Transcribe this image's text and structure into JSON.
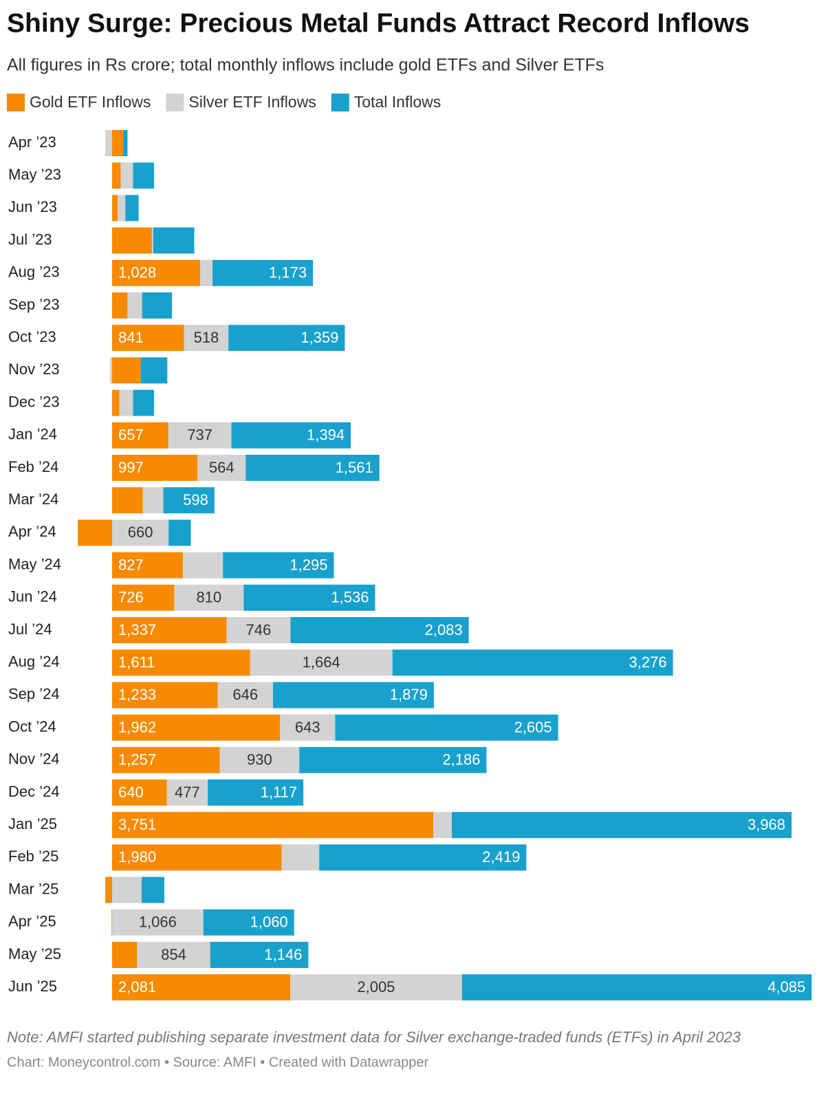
{
  "chart_data": {
    "type": "stacked-bar-horizontal",
    "title": "Shiny Surge: Precious Metal Funds Attract Record Inflows",
    "subtitle": "All figures in Rs crore; total monthly inflows include gold ETFs and Silver ETFs",
    "categories": [
      "Apr ’23",
      "May ’23",
      "Jun ’23",
      "Jul ’23",
      "Aug ’23",
      "Sep ’23",
      "Oct ’23",
      "Nov ’23",
      "Dec ’23",
      "Jan ’24",
      "Feb ’24",
      "Mar ’24",
      "Apr ’24",
      "May ’24",
      "Jun ’24",
      "Jul ’24",
      "Aug ’24",
      "Sep ’24",
      "Oct ’24",
      "Nov ’24",
      "Dec ’24",
      "Jan ’25",
      "Feb ’25",
      "Mar ’25",
      "Apr ’25",
      "May ’25",
      "Jun ’25"
    ],
    "series": [
      {
        "name": "Gold ETF Inflows",
        "color": "#f78a00",
        "values": [
          130,
          100,
          65,
          465,
          1028,
          180,
          841,
          335,
          85,
          657,
          997,
          360,
          -400,
          827,
          726,
          1337,
          1611,
          1233,
          1962,
          1257,
          640,
          3751,
          1980,
          -80,
          -6,
          292,
          2081
        ],
        "value_labels": [
          null,
          null,
          null,
          null,
          "1,028",
          null,
          "841",
          null,
          null,
          "657",
          "997",
          null,
          null,
          "827",
          "726",
          "1,337",
          "1,611",
          "1,233",
          "1,962",
          "1,257",
          "640",
          "3,751",
          "1,980",
          null,
          null,
          null,
          "2,081"
        ]
      },
      {
        "name": "Silver ETF Inflows",
        "color": "#d3d3d3",
        "values": [
          -80,
          145,
          90,
          15,
          145,
          170,
          518,
          -25,
          160,
          737,
          564,
          238,
          660,
          468,
          810,
          746,
          1664,
          646,
          643,
          930,
          477,
          217,
          439,
          345,
          1066,
          854,
          2005
        ],
        "value_labels": [
          null,
          null,
          null,
          null,
          null,
          null,
          "518",
          null,
          null,
          "737",
          "564",
          null,
          "660",
          null,
          "810",
          "746",
          "1,664",
          "646",
          "643",
          "930",
          "477",
          null,
          null,
          null,
          "1,066",
          "854",
          "2,005"
        ]
      },
      {
        "name": "Total Inflows",
        "color": "#18a1cd",
        "values": [
          50,
          245,
          155,
          480,
          1173,
          350,
          1359,
          310,
          245,
          1394,
          1561,
          598,
          260,
          1295,
          1536,
          2083,
          3276,
          1879,
          2605,
          2186,
          1117,
          3968,
          2419,
          265,
          1060,
          1146,
          4085
        ],
        "value_labels": [
          null,
          null,
          null,
          null,
          "1,173",
          null,
          "1,359",
          null,
          null,
          "1,394",
          "1,561",
          "598",
          null,
          "1,295",
          "1,536",
          "2,083",
          "3,276",
          "1,879",
          "2,605",
          "2,186",
          "1,117",
          "3,968",
          "2,419",
          null,
          "1,060",
          "1,146",
          "4,085"
        ]
      }
    ],
    "note": "Note: AMFI started publishing separate investment data for Silver exchange-traded funds (ETFs) in April 2023",
    "source": "Chart: Moneycontrol.com • Source: AMFI • Created with Datawrapper"
  }
}
